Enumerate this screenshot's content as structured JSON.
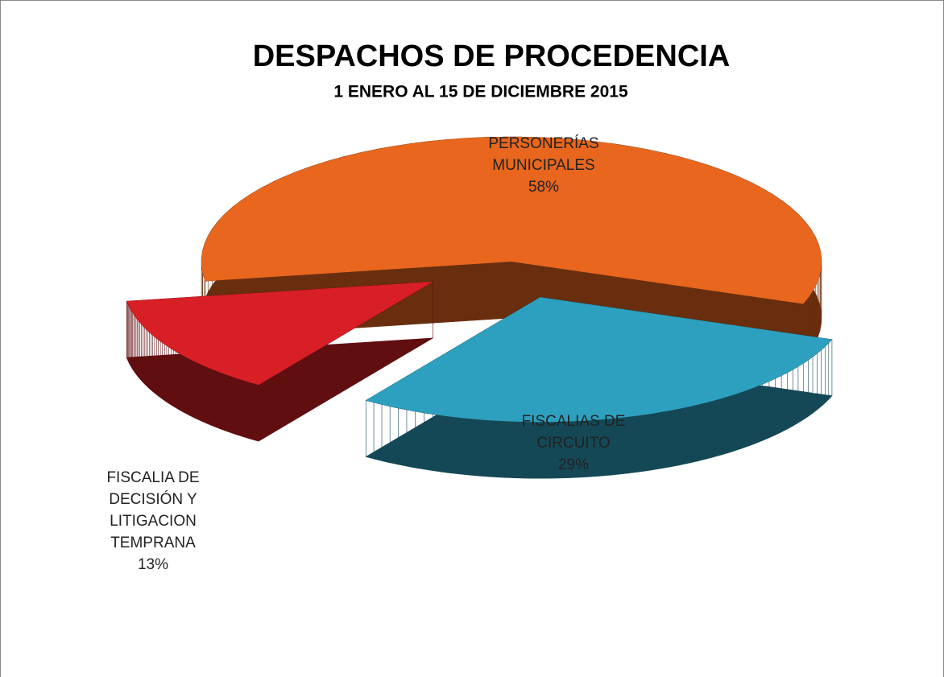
{
  "chart_data": {
    "type": "pie",
    "title": "DESPACHOS DE PROCEDENCIA",
    "subtitle": "1 ENERO AL 15 DE DICIEMBRE  2015",
    "categories": [
      "PERSONERÍAS MUNICIPALES",
      "FISCALIAS DE CIRCUITO",
      "FISCALIA DE DECISIÓN Y LITIGACION TEMPRANA"
    ],
    "values": [
      58,
      29,
      13
    ],
    "value_labels": [
      "58%",
      "29%",
      "13%"
    ],
    "colors": [
      "#e8661e",
      "#2ea0bf",
      "#d81f26"
    ]
  }
}
